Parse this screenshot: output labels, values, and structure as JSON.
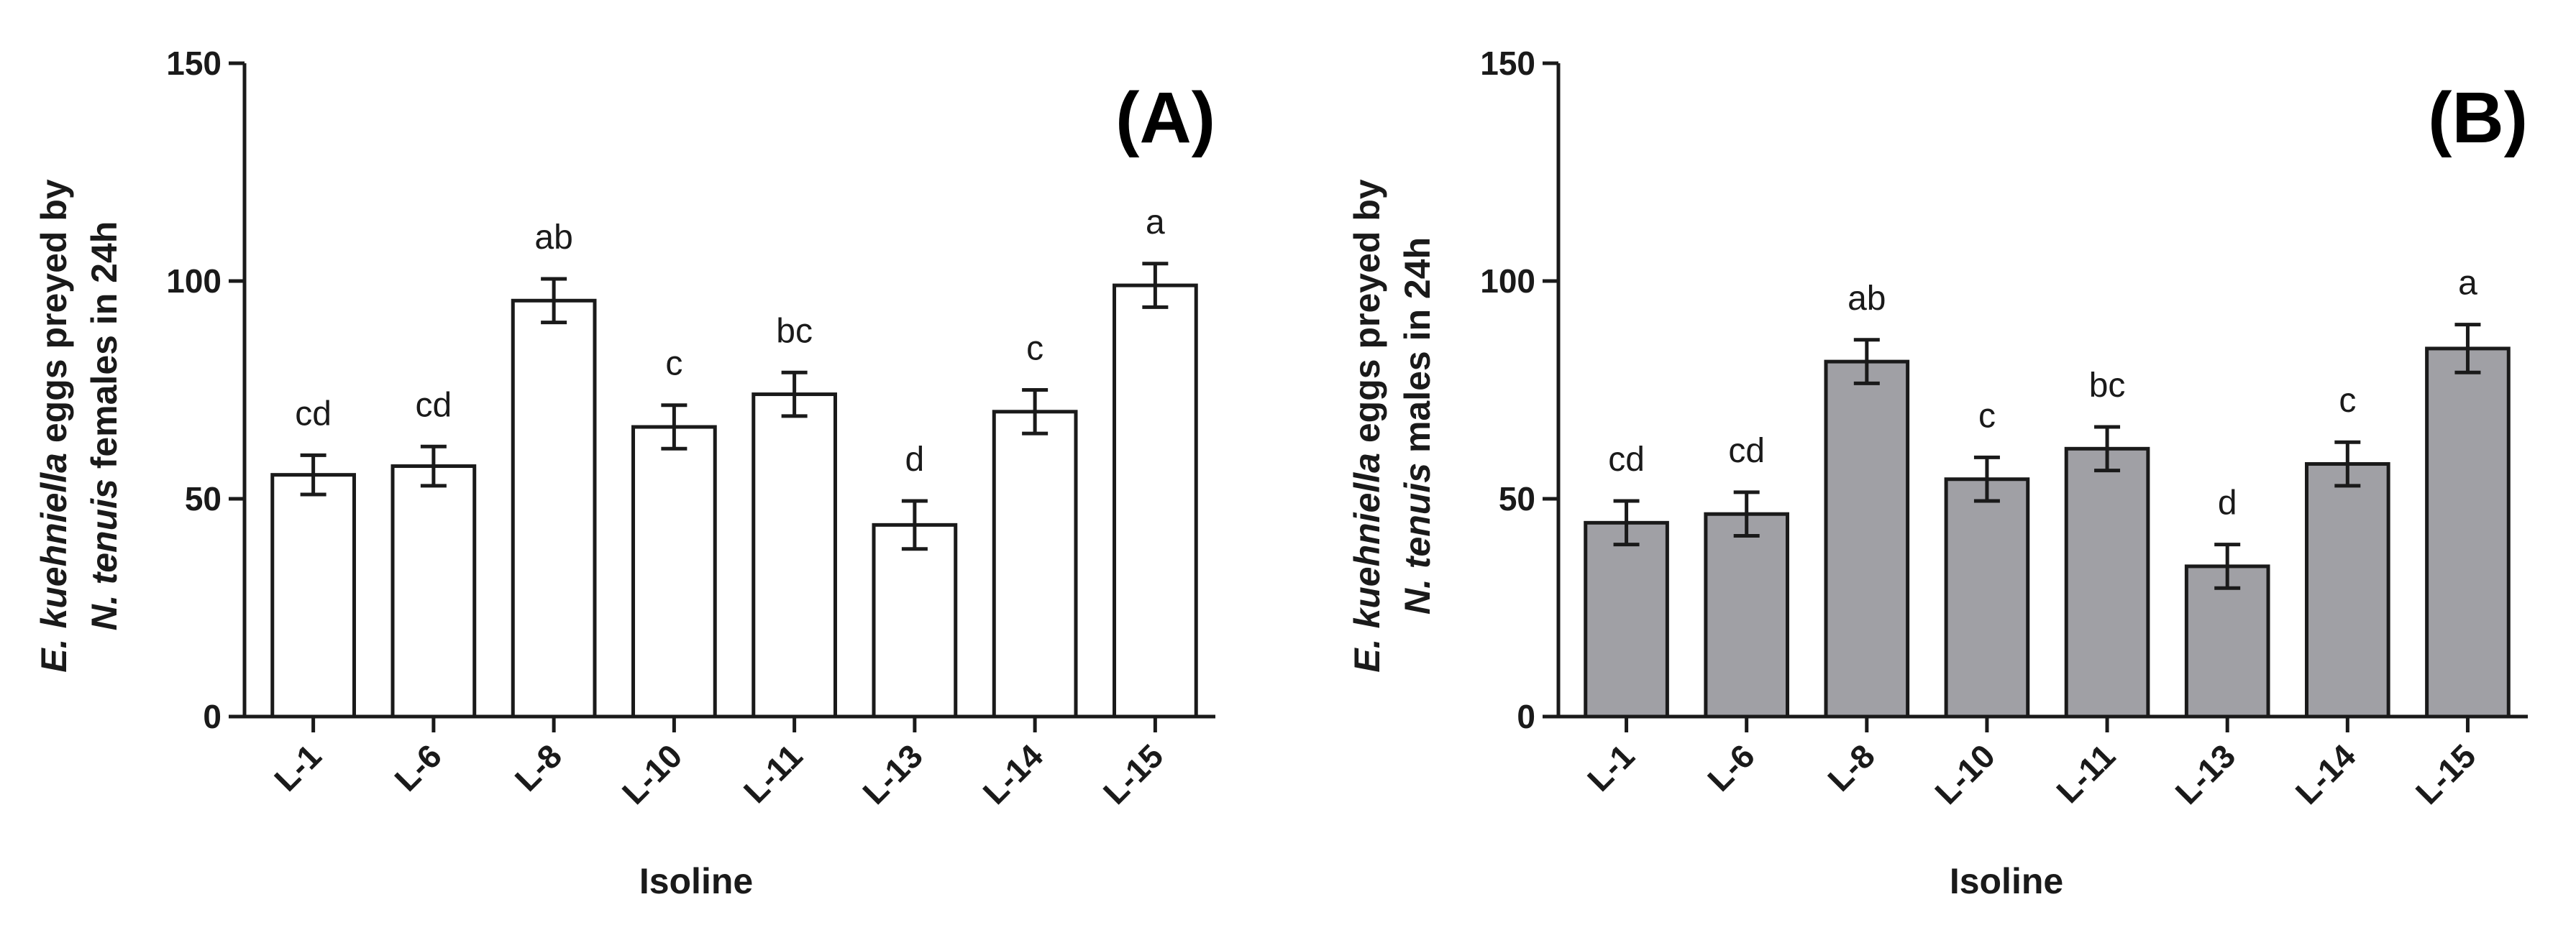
{
  "chart_data": [
    {
      "type": "bar",
      "panel_label": "(A)",
      "title": "",
      "xlabel": "Isoline",
      "ylabel_line1": "E. kuehniella eggs preyed by",
      "ylabel_line2": "N. tenuis females in 24h",
      "ylabel_italic_1": "E. kuehniella",
      "ylabel_rest_1": " eggs preyed by",
      "ylabel_italic_2": "N. tenuis",
      "ylabel_rest_2": " females in 24h",
      "ylim": [
        0,
        150
      ],
      "yticks": [
        0,
        50,
        100,
        150
      ],
      "categories": [
        "L-1",
        "L-6",
        "L-8",
        "L-10",
        "L-11",
        "L-13",
        "L-14",
        "L-15"
      ],
      "values": [
        55.5,
        57.5,
        95.5,
        66.5,
        74,
        44,
        70,
        99
      ],
      "errors": [
        4.5,
        4.5,
        5,
        5,
        5,
        5.5,
        5,
        5
      ],
      "significance": [
        "cd",
        "cd",
        "ab",
        "c",
        "bc",
        "d",
        "c",
        "a"
      ],
      "bar_color": "#ffffff"
    },
    {
      "type": "bar",
      "panel_label": "(B)",
      "title": "",
      "xlabel": "Isoline",
      "ylabel_line1": "E. kuehniella eggs preyed by",
      "ylabel_line2": "N. tenuis males in 24h",
      "ylabel_italic_1": "E. kuehniella",
      "ylabel_rest_1": " eggs preyed by",
      "ylabel_italic_2": "N. tenuis",
      "ylabel_rest_2": " males in 24h",
      "ylim": [
        0,
        150
      ],
      "yticks": [
        0,
        50,
        100,
        150
      ],
      "categories": [
        "L-1",
        "L-6",
        "L-8",
        "L-10",
        "L-11",
        "L-13",
        "L-14",
        "L-15"
      ],
      "values": [
        44.5,
        46.5,
        81.5,
        54.5,
        61.5,
        34.5,
        58,
        84.5
      ],
      "errors": [
        5,
        5,
        5,
        5,
        5,
        5,
        5,
        5.5
      ],
      "significance": [
        "cd",
        "cd",
        "ab",
        "c",
        "bc",
        "d",
        "c",
        "a"
      ],
      "bar_color": "#a0a0a5"
    }
  ]
}
